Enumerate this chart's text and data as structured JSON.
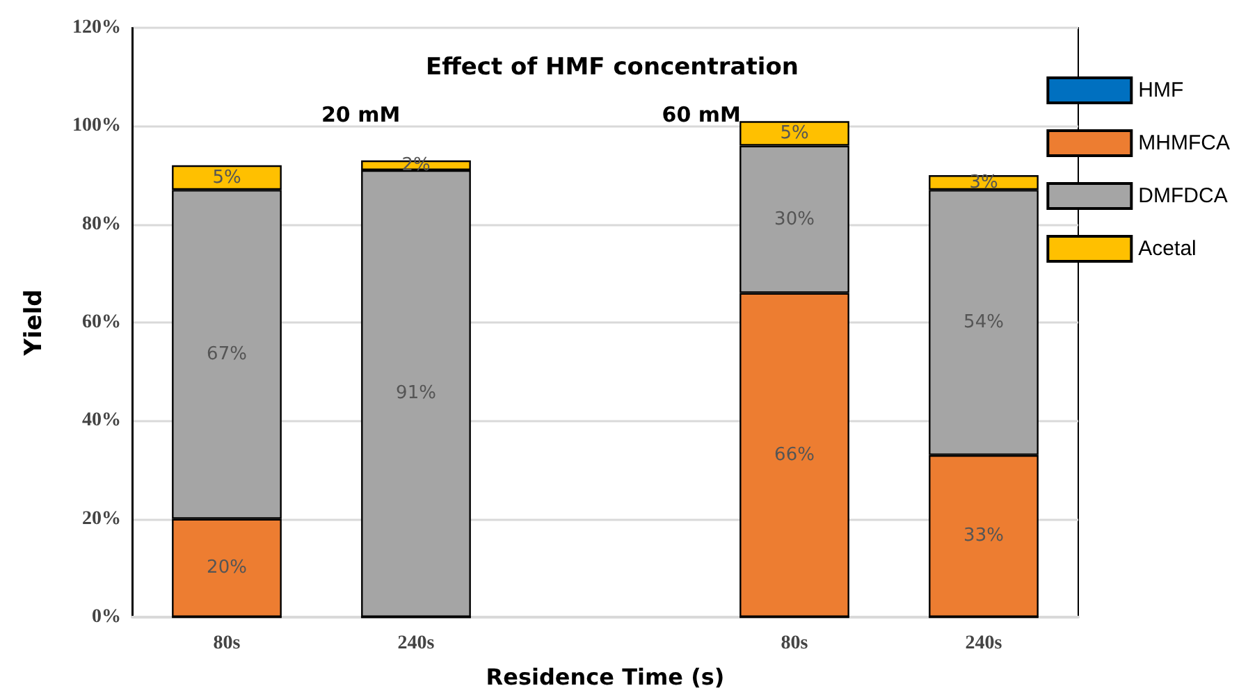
{
  "chart_data": {
    "type": "bar",
    "title": "Effect of HMF concentration",
    "xlabel": "Residence Time (s)",
    "ylabel": "Yield",
    "annotations": [
      "20 mM",
      "60 mM"
    ],
    "categories": [
      "80s",
      "240s",
      null,
      "80s",
      "240s"
    ],
    "stacked": true,
    "grid": "y",
    "legend": "right",
    "ylim": [
      0,
      120
    ],
    "yticks": [
      {
        "value": 0,
        "label": "0%"
      },
      {
        "value": 20,
        "label": "20%"
      },
      {
        "value": 40,
        "label": "40%"
      },
      {
        "value": 60,
        "label": "60%"
      },
      {
        "value": 80,
        "label": "80%"
      },
      {
        "value": 100,
        "label": "100%"
      },
      {
        "value": 120,
        "label": "120%"
      }
    ],
    "series": [
      {
        "name": "HMF",
        "color": "#0070c0",
        "values": [
          0,
          0,
          null,
          0,
          0
        ]
      },
      {
        "name": "MHMFCA",
        "color": "#ed7d31",
        "values": [
          20,
          0,
          null,
          66,
          33
        ],
        "value_labels": [
          "20%",
          null,
          null,
          "66%",
          "33%"
        ]
      },
      {
        "name": "DMFDCA",
        "color": "#a5a5a5",
        "values": [
          67,
          91,
          null,
          30,
          54
        ],
        "value_labels": [
          "67%",
          "91%",
          null,
          "30%",
          "54%"
        ]
      },
      {
        "name": "Acetal",
        "color": "#ffc000",
        "values": [
          5,
          2,
          null,
          5,
          3
        ],
        "value_labels": [
          "5%",
          "2%",
          null,
          "5%",
          "3%"
        ]
      }
    ]
  }
}
